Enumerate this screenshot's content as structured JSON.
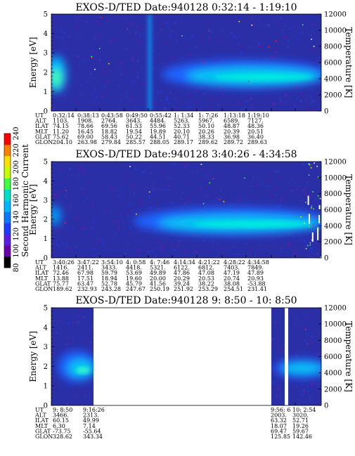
{
  "chart_data": {
    "type": "heatmap",
    "colorbar": {
      "label": "Second Harmonic Current",
      "ticks": [
        "80",
        "100",
        "120",
        "140",
        "160",
        "180",
        "200",
        "220",
        "240"
      ],
      "colors": [
        "#000000",
        "#6a00a8",
        "#5a1ee8",
        "#1e3cff",
        "#0a78ff",
        "#00b8ff",
        "#00e0c8",
        "#40ff40",
        "#c8ff00",
        "#ffe000",
        "#ff8000",
        "#ff0000"
      ]
    },
    "panels": [
      {
        "title": "EXOS-D/TED   Date:940128  0:32:14 - 1:19:10",
        "ylabel": "Energy [eV]",
        "y2label": "Temperature [K]",
        "yticks": [
          "0",
          "1",
          "2",
          "3",
          "4",
          "5"
        ],
        "y2ticks": [
          "0",
          "2000",
          "4000",
          "6000",
          "8000",
          "10000",
          "12000"
        ],
        "row_labels": [
          "UT",
          "ALT",
          "ILAT",
          "MLT",
          "GLAT",
          "GLON"
        ],
        "columns": [
          [
            "0:32:14",
            "1103.",
            "74.15",
            "11.20",
            "75.62",
            "204.10"
          ],
          [
            "0:38:13",
            "1908.",
            "78.66",
            "16.45",
            "69.00",
            "263.98"
          ],
          [
            "0:43:58",
            "2764.",
            "69.56",
            "18.82",
            "58.43",
            "279.84"
          ],
          [
            "0:49:50",
            "3643.",
            "61.53",
            "19.54",
            "50.22",
            "285.57"
          ],
          [
            "0:55:42",
            "4484.",
            "55.96",
            "19.89",
            "44.51",
            "288.05"
          ],
          [
            "1: 1:34",
            "5263.",
            "52.33",
            "20.10",
            "40.71",
            "289.17"
          ],
          [
            "1: 7:26",
            "5967.",
            "50.10",
            "20.26",
            "38.33",
            "289.62"
          ],
          [
            "1:13:18",
            "6589.",
            "48.87",
            "20.39",
            "36.98",
            "289.72"
          ],
          [
            "1:19:10",
            "7127.",
            "48.36",
            "20.51",
            "36.40",
            "289.63"
          ]
        ]
      },
      {
        "title": "EXOS-D/TED   Date:940128  3:40:26 - 4:34:58",
        "ylabel": "Energy [eV]",
        "y2label": "Temperature [K]",
        "yticks": [
          "0",
          "1",
          "2",
          "3",
          "4",
          "5"
        ],
        "y2ticks": [
          "0",
          "2000",
          "4000",
          "6000",
          "8000",
          "10000",
          "12000"
        ],
        "row_labels": [
          "UT",
          "ALT",
          "ILAT",
          "MLT",
          "GLAT",
          "GLON"
        ],
        "columns": [
          [
            "3:40:26",
            "1416.",
            "72.46",
            "13.88",
            "75.77",
            "189.62"
          ],
          [
            "3:47:22",
            "2411.",
            "67.98",
            "17.51",
            "63.47",
            "232.93"
          ],
          [
            "3:54:10",
            "3433.",
            "59.79",
            "18.94",
            "52.78",
            "243.28"
          ],
          [
            "4: 0:58",
            "4418.",
            "53.69",
            "19.60",
            "45.79",
            "247.67"
          ],
          [
            "4: 7:46",
            "5321.",
            "49.89",
            "20.00",
            "41.56",
            "250.19"
          ],
          [
            "4:14:34",
            "6122.",
            "47.86",
            "20.29",
            "39.24",
            "251.92"
          ],
          [
            "4:21:22",
            "6812.",
            "47.08",
            "20.53",
            "38.22",
            "253.29"
          ],
          [
            "4:28:22",
            "7403.",
            "47.19",
            "20.74",
            "38.08",
            "254.51"
          ],
          [
            "4:34:58",
            "7849.",
            "47.89",
            "20.93",
            "-53.88",
            "231.41"
          ]
        ]
      },
      {
        "title": "EXOS-D/TED   Date:940128  9: 8:50 - 10: 8:50",
        "ylabel": "Energy [eV]",
        "y2label": "Temperature [K]",
        "yticks": [
          "0",
          "1",
          "2",
          "3",
          "4",
          "5"
        ],
        "y2ticks": [
          "0",
          "2000",
          "4000",
          "6000",
          "8000",
          "10000",
          "12000"
        ],
        "row_labels": [
          "UT",
          "ALT",
          "ILAT",
          "MLT",
          "GLAT",
          "GLON"
        ],
        "columns": [
          [
            "9: 8:50",
            "3466.",
            "60.15",
            "6.30",
            "-73.75",
            "328.62"
          ],
          [
            "9:16:26",
            "2313.",
            "49.99",
            "7.14",
            "-55.64",
            "343.34"
          ],
          [
            "9:56: 6",
            "2003.",
            "63.32",
            "18.07",
            "69.47",
            "125.85"
          ],
          [
            "10: 2:54",
            "3020.",
            "52.71",
            "19.26",
            "59.67",
            "142.46"
          ]
        ]
      }
    ]
  }
}
